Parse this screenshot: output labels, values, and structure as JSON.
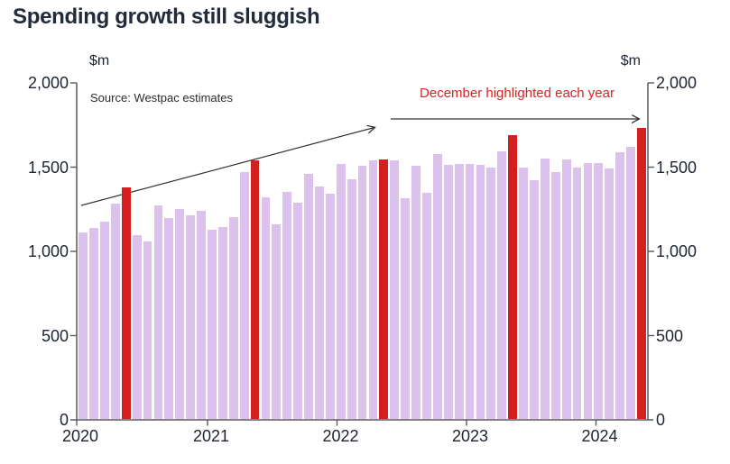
{
  "title": "Spending growth still sluggish",
  "source_note": "Source: Westpac estimates",
  "annotation": "December highlighted each year",
  "unit_left": "$m",
  "unit_right": "$m",
  "colors": {
    "bar": "#dcc1ec",
    "highlight": "#d41f1f",
    "annotation_text": "#d92323",
    "title_text": "#212b3a",
    "axis_text": "#1c2430",
    "axis_line": "#58595b",
    "arrow": "#333333"
  },
  "chart_data": {
    "type": "bar",
    "title": "Spending growth still sluggish",
    "ylabel": "$m",
    "ylabel_right": "$m",
    "ylim": [
      0,
      2000
    ],
    "yticks": [
      0,
      500,
      1000,
      1500,
      2000
    ],
    "ytick_labels": [
      "0",
      "500",
      "1,000",
      "1,500",
      "2,000"
    ],
    "x_year_ticks": [
      "2020",
      "2021",
      "2022",
      "2023",
      "2024"
    ],
    "grid": false,
    "legend": null,
    "highlight_rule": "December highlighted each year",
    "december_indices": [
      4,
      16,
      28,
      40,
      52
    ],
    "categories": [
      "Aug 2020",
      "Sep 2020",
      "Oct 2020",
      "Nov 2020",
      "Dec 2020",
      "Jan 2021",
      "Feb 2021",
      "Mar 2021",
      "Apr 2021",
      "May 2021",
      "Jun 2021",
      "Jul 2021",
      "Aug 2021",
      "Sep 2021",
      "Oct 2021",
      "Nov 2021",
      "Dec 2021",
      "Jan 2022",
      "Feb 2022",
      "Mar 2022",
      "Apr 2022",
      "May 2022",
      "Jun 2022",
      "Jul 2022",
      "Aug 2022",
      "Sep 2022",
      "Oct 2022",
      "Nov 2022",
      "Dec 2022",
      "Jan 2023",
      "Feb 2023",
      "Mar 2023",
      "Apr 2023",
      "May 2023",
      "Jun 2023",
      "Jul 2023",
      "Aug 2023",
      "Sep 2023",
      "Oct 2023",
      "Nov 2023",
      "Dec 2023",
      "Jan 2024",
      "Feb 2024",
      "Mar 2024",
      "Apr 2024",
      "May 2024",
      "Jun 2024",
      "Jul 2024",
      "Aug 2024",
      "Sep 2024",
      "Oct 2024",
      "Nov 2024",
      "Dec 2024"
    ],
    "values": [
      1110,
      1140,
      1175,
      1285,
      1380,
      1095,
      1060,
      1275,
      1200,
      1250,
      1215,
      1240,
      1130,
      1145,
      1205,
      1470,
      1540,
      1320,
      1160,
      1355,
      1290,
      1460,
      1385,
      1340,
      1520,
      1430,
      1510,
      1540,
      1545,
      1540,
      1315,
      1510,
      1345,
      1575,
      1515,
      1520,
      1520,
      1515,
      1495,
      1595,
      1690,
      1500,
      1420,
      1550,
      1470,
      1545,
      1500,
      1525,
      1525,
      1490,
      1590,
      1620,
      1730
    ]
  }
}
